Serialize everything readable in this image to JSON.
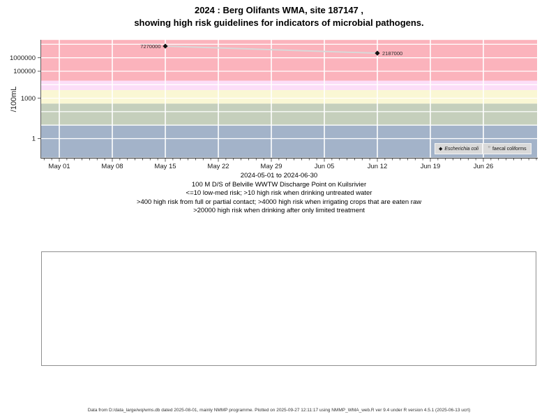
{
  "title": {
    "line1": "2024 : Berg Olifants WMA, site 187147 ,",
    "line2": "showing high risk guidelines for indicators of microbial pathogens."
  },
  "chart_data": {
    "type": "scatter",
    "title": "2024 : Berg Olifants WMA, site 187147 , showing high risk guidelines for indicators of microbial pathogens.",
    "y_axis": {
      "label": "/100mL",
      "scale": "log10",
      "ylim": [
        0.04,
        21000000
      ],
      "ticks": [
        1000000,
        100000,
        1000,
        1
      ],
      "tick_labels": [
        "1000000",
        "100000",
        "1000",
        "1"
      ],
      "gridline_decades": [
        1,
        10,
        100,
        1000,
        10000,
        100000,
        1000000,
        10000000
      ]
    },
    "x_axis": {
      "start": "2024-05-01",
      "end": "2024-06-30",
      "domain_days": [
        -2,
        63
      ],
      "tick_labels": [
        "May 01",
        "May 08",
        "May 15",
        "May 22",
        "May 29",
        "Jun 05",
        "Jun 12",
        "Jun 19",
        "Jun 26"
      ],
      "tick_day_offsets": [
        0,
        7,
        14,
        21,
        28,
        35,
        42,
        49,
        56
      ],
      "minor_tick_every_days": 1
    },
    "risk_bands": [
      {
        "range": "<=10",
        "meaning": "low-med risk",
        "from": 0.04,
        "to": 10,
        "color": "#a3b3c9"
      },
      {
        "range": ">10",
        "meaning": "high risk when drinking untreated water",
        "from": 10,
        "to": 400,
        "color": "#c5cfbc"
      },
      {
        "range": ">400",
        "meaning": "high risk from full or partial contact",
        "from": 400,
        "to": 4000,
        "color": "#faf7d4"
      },
      {
        "range": ">4000",
        "meaning": "high risk when irrigating crops that are eaten raw",
        "from": 4000,
        "to": 20000,
        "color": "#fcdef8"
      },
      {
        "range": ">20000",
        "meaning": "high risk when drinking after only limited treatment",
        "from": 20000,
        "to": 21000000,
        "color": "#fbb3bc"
      }
    ],
    "series": [
      {
        "name": "Escherichia coli",
        "marker": "filled-diamond",
        "marker_color": "#111111",
        "line_color": "#d8d8d8",
        "points": [
          {
            "date": "2024-05-15",
            "day_offset": 14,
            "value": 7270000,
            "label": "7270000",
            "label_side": "left"
          },
          {
            "date": "2024-06-12",
            "day_offset": 42,
            "value": 2187000,
            "label": "2187000",
            "label_side": "right"
          }
        ]
      },
      {
        "name": "faecal coliforms",
        "marker": "open-circle",
        "marker_color": "#444444",
        "line_color": "#d8d8d8",
        "points": []
      }
    ],
    "legend": {
      "position": "bottom-right",
      "entries": [
        {
          "label": "Escherichia coli",
          "marker": "filled-diamond",
          "italic": true
        },
        {
          "label": "faecal coliforms",
          "marker": "open-circle",
          "italic": false
        }
      ]
    }
  },
  "caption": {
    "lines": [
      "2024-05-01 to 2024-06-30",
      "100 M D/S of Belville WWTW Discharge Point on Kuilsrivier",
      "<=10 low-med risk; >10 high risk when drinking untreated water",
      ">400 high risk from full or partial contact; >4000 high risk when irrigating crops that are eaten raw",
      ">20000 high risk when drinking after only limited treatment"
    ]
  },
  "footer": {
    "text": "Data from D:/data_large/wq/wms.db dated 2025-08-01, mainly NMMP programme. Plotted on 2025-09-27 12:11:17 using NMMP_WMA_web.R ver 9.4 under R version 4.5.1 (2025-06-13 ucrt)"
  },
  "colors": {
    "band_low": "#a3b3c9",
    "band_drinking": "#c5cfbc",
    "band_contact": "#faf7d4",
    "band_irrigation": "#fcdef8",
    "band_limited_treatment": "#fbb3bc",
    "gridline": "#ffffff",
    "axis": "#333333",
    "series_line": "#d8d8d8",
    "marker": "#111111",
    "legend_bg": "#d9d9d9",
    "placeholder_border": "#8f8f8f"
  }
}
